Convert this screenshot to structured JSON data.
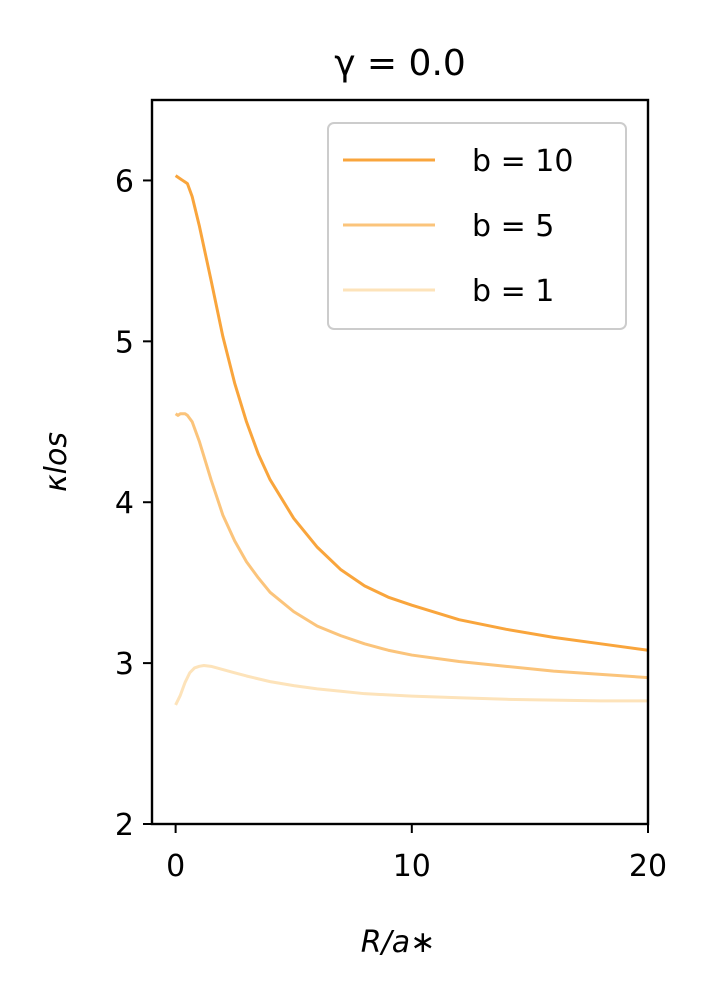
{
  "chart_data": {
    "type": "line",
    "title": "γ = 0.0",
    "xlabel": "R/a∗",
    "ylabel": "κlos",
    "xlim": [
      -1,
      20
    ],
    "ylim": [
      2,
      6.5
    ],
    "xticks": [
      0,
      10,
      20
    ],
    "yticks": [
      2,
      3,
      4,
      5,
      6
    ],
    "x_tick_labels": [
      "0",
      "10",
      "20"
    ],
    "y_tick_labels": [
      "2",
      "3",
      "4",
      "5",
      "6"
    ],
    "grid": false,
    "legend_position": "upper right",
    "series": [
      {
        "name": "b = 10",
        "color": "#f9a53c",
        "x": [
          0,
          0.1,
          0.2,
          0.3,
          0.4,
          0.5,
          0.7,
          1.0,
          1.5,
          2.0,
          2.5,
          3.0,
          3.5,
          4.0,
          5.0,
          6.0,
          7.0,
          8.0,
          9.0,
          10.0,
          12.0,
          14.0,
          16.0,
          18.0,
          20.0
        ],
        "y": [
          6.03,
          6.02,
          6.01,
          6.0,
          5.99,
          5.98,
          5.9,
          5.72,
          5.38,
          5.03,
          4.74,
          4.5,
          4.3,
          4.14,
          3.9,
          3.72,
          3.58,
          3.48,
          3.41,
          3.36,
          3.27,
          3.21,
          3.16,
          3.12,
          3.08
        ]
      },
      {
        "name": "b = 5",
        "color": "#fbc47b",
        "x": [
          0,
          0.1,
          0.2,
          0.3,
          0.4,
          0.5,
          0.7,
          1.0,
          1.5,
          2.0,
          2.5,
          3.0,
          3.5,
          4.0,
          5.0,
          6.0,
          7.0,
          8.0,
          9.0,
          10.0,
          12.0,
          14.0,
          16.0,
          18.0,
          20.0
        ],
        "y": [
          4.55,
          4.54,
          4.55,
          4.55,
          4.55,
          4.54,
          4.5,
          4.38,
          4.14,
          3.92,
          3.76,
          3.63,
          3.53,
          3.44,
          3.32,
          3.23,
          3.17,
          3.12,
          3.08,
          3.05,
          3.01,
          2.98,
          2.95,
          2.93,
          2.91
        ]
      },
      {
        "name": "b = 1",
        "color": "#fde3ba",
        "x": [
          0,
          0.2,
          0.4,
          0.6,
          0.8,
          1.0,
          1.2,
          1.5,
          2.0,
          2.5,
          3.0,
          4.0,
          5.0,
          6.0,
          7.0,
          8.0,
          10.0,
          12.0,
          14.0,
          16.0,
          18.0,
          20.0
        ],
        "y": [
          2.74,
          2.8,
          2.88,
          2.94,
          2.97,
          2.98,
          2.985,
          2.98,
          2.96,
          2.94,
          2.92,
          2.885,
          2.86,
          2.84,
          2.825,
          2.81,
          2.795,
          2.785,
          2.775,
          2.77,
          2.765,
          2.765
        ]
      }
    ]
  }
}
